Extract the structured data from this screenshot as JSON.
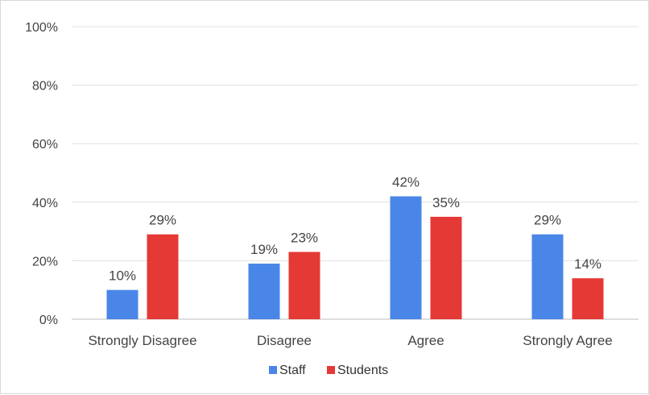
{
  "chart_data": {
    "type": "bar",
    "categories": [
      "Strongly Disagree",
      "Disagree",
      "Agree",
      "Strongly Agree"
    ],
    "series": [
      {
        "name": "Staff",
        "values": [
          10,
          19,
          42,
          29
        ],
        "color": "#4a86e8"
      },
      {
        "name": "Students",
        "values": [
          29,
          23,
          35,
          14
        ],
        "color": "#e53935"
      }
    ],
    "data_labels": [
      [
        "10%",
        "19%",
        "42%",
        "29%"
      ],
      [
        "29%",
        "23%",
        "35%",
        "14%"
      ]
    ],
    "yticks": [
      "0%",
      "20%",
      "40%",
      "60%",
      "80%",
      "100%"
    ],
    "ylim": [
      0,
      100
    ],
    "grid": true,
    "legend_position": "bottom"
  }
}
